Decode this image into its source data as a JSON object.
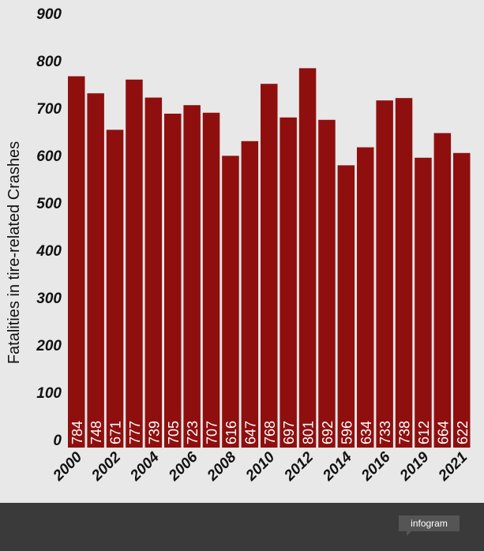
{
  "chart_data": {
    "type": "bar",
    "title": "",
    "xlabel": "",
    "ylabel": "Fatalities in tire-related Crashes",
    "ylim": [
      0,
      900
    ],
    "yticks": [
      0,
      100,
      200,
      300,
      400,
      500,
      600,
      700,
      800,
      900
    ],
    "categories": [
      "2000",
      "",
      "2002",
      "",
      "2004",
      "",
      "2006",
      "",
      "2008",
      "",
      "2010",
      "",
      "2012",
      "",
      "2014",
      "",
      "2016",
      "",
      "2019",
      "",
      "2021"
    ],
    "values": [
      784,
      748,
      671,
      777,
      739,
      705,
      723,
      707,
      616,
      647,
      768,
      697,
      801,
      692,
      596,
      634,
      733,
      738,
      612,
      664,
      622
    ],
    "bar_color": "#8f0f0f",
    "grid": false
  },
  "footer": {
    "brand": "infogram"
  }
}
